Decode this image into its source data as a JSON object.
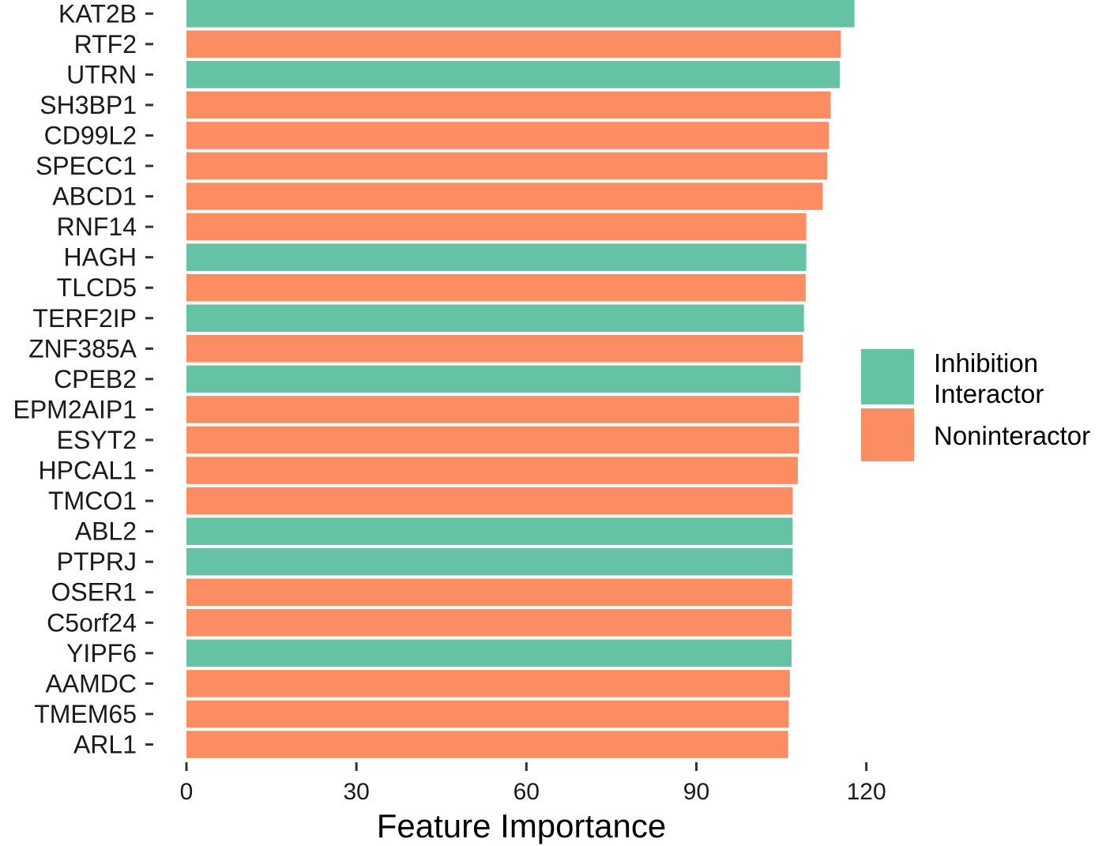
{
  "chart_data": {
    "type": "bar",
    "orientation": "horizontal",
    "xlabel": "Feature Importance",
    "ylabel": "",
    "xlim": [
      0,
      120
    ],
    "x_ticks": [
      "0",
      "30",
      "60",
      "90",
      "120"
    ],
    "grid": false,
    "legend_position": "right",
    "legend": [
      {
        "key": "inhibition",
        "lines": [
          "Inhibition",
          "Interactor"
        ],
        "color": "#66c2a5"
      },
      {
        "key": "noninteractor",
        "lines": [
          "Noninteractor"
        ],
        "color": "#fc8d62"
      }
    ],
    "bars": [
      {
        "gene": "KAT2B",
        "value": 117.9,
        "group": "inhibition"
      },
      {
        "gene": "RTF2",
        "value": 115.5,
        "group": "noninteractor"
      },
      {
        "gene": "UTRN",
        "value": 115.3,
        "group": "inhibition"
      },
      {
        "gene": "SH3BP1",
        "value": 113.7,
        "group": "noninteractor"
      },
      {
        "gene": "CD99L2",
        "value": 113.4,
        "group": "noninteractor"
      },
      {
        "gene": "SPECC1",
        "value": 113.1,
        "group": "noninteractor"
      },
      {
        "gene": "ABCD1",
        "value": 112.3,
        "group": "noninteractor"
      },
      {
        "gene": "RNF14",
        "value": 109.4,
        "group": "noninteractor"
      },
      {
        "gene": "HAGH",
        "value": 109.4,
        "group": "inhibition"
      },
      {
        "gene": "TLCD5",
        "value": 109.3,
        "group": "noninteractor"
      },
      {
        "gene": "TERF2IP",
        "value": 109.0,
        "group": "inhibition"
      },
      {
        "gene": "ZNF385A",
        "value": 108.8,
        "group": "noninteractor"
      },
      {
        "gene": "CPEB2",
        "value": 108.4,
        "group": "inhibition"
      },
      {
        "gene": "EPM2AIP1",
        "value": 108.1,
        "group": "noninteractor"
      },
      {
        "gene": "ESYT2",
        "value": 108.1,
        "group": "noninteractor"
      },
      {
        "gene": "HPCAL1",
        "value": 107.9,
        "group": "noninteractor"
      },
      {
        "gene": "TMCO1",
        "value": 107.0,
        "group": "noninteractor"
      },
      {
        "gene": "ABL2",
        "value": 107.0,
        "group": "inhibition"
      },
      {
        "gene": "PTPRJ",
        "value": 107.0,
        "group": "inhibition"
      },
      {
        "gene": "OSER1",
        "value": 106.9,
        "group": "noninteractor"
      },
      {
        "gene": "C5orf24",
        "value": 106.8,
        "group": "noninteractor"
      },
      {
        "gene": "YIPF6",
        "value": 106.8,
        "group": "inhibition"
      },
      {
        "gene": "AAMDC",
        "value": 106.5,
        "group": "noninteractor"
      },
      {
        "gene": "TMEM65",
        "value": 106.3,
        "group": "noninteractor"
      },
      {
        "gene": "ARL1",
        "value": 106.2,
        "group": "noninteractor"
      }
    ]
  }
}
